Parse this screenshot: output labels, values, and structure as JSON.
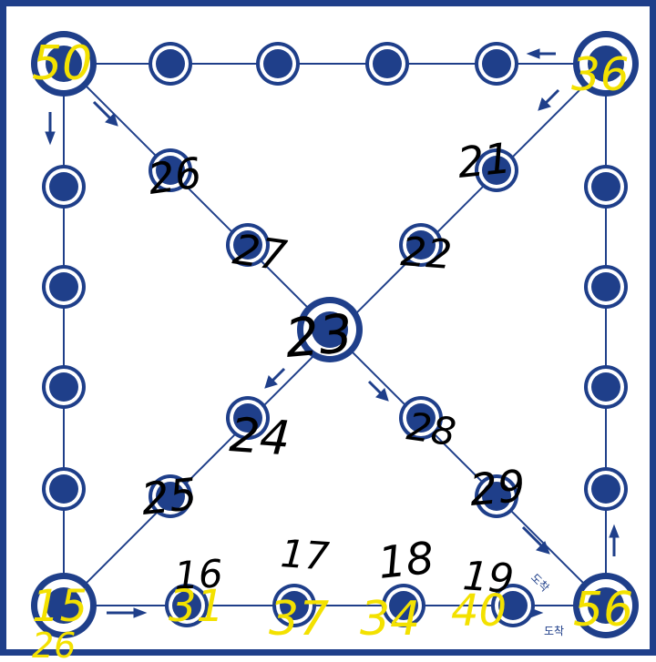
{
  "board": {
    "colors": {
      "primary": "#1f3f8a",
      "ring_bg": "#ffffff",
      "line": "#1f3f8a",
      "black_ink": "#000000",
      "yellow_ink": "#f3e100"
    },
    "label_arrival": "도착"
  },
  "annotations": {
    "black": [
      {
        "name": "black-26",
        "text": "26"
      },
      {
        "name": "black-27",
        "text": "27"
      },
      {
        "name": "black-21",
        "text": "21"
      },
      {
        "name": "black-22",
        "text": "22"
      },
      {
        "name": "black-23",
        "text": "23"
      },
      {
        "name": "black-24-a",
        "text": "24"
      },
      {
        "name": "black-25",
        "text": "25"
      },
      {
        "name": "black-28",
        "text": "28"
      },
      {
        "name": "black-29",
        "text": "29"
      },
      {
        "name": "black-16",
        "text": "16"
      },
      {
        "name": "black-17",
        "text": "17"
      },
      {
        "name": "black-18",
        "text": "18"
      },
      {
        "name": "black-19",
        "text": "19"
      }
    ],
    "yellow": [
      {
        "name": "yellow-50",
        "text": "50"
      },
      {
        "name": "yellow-36",
        "text": "36"
      },
      {
        "name": "yellow-15",
        "text": "15"
      },
      {
        "name": "yellow-26",
        "text": "26"
      },
      {
        "name": "yellow-31",
        "text": "31"
      },
      {
        "name": "yellow-37",
        "text": "37"
      },
      {
        "name": "yellow-34",
        "text": "34"
      },
      {
        "name": "yellow-40",
        "text": "40"
      },
      {
        "name": "yellow-56",
        "text": "56"
      }
    ]
  }
}
